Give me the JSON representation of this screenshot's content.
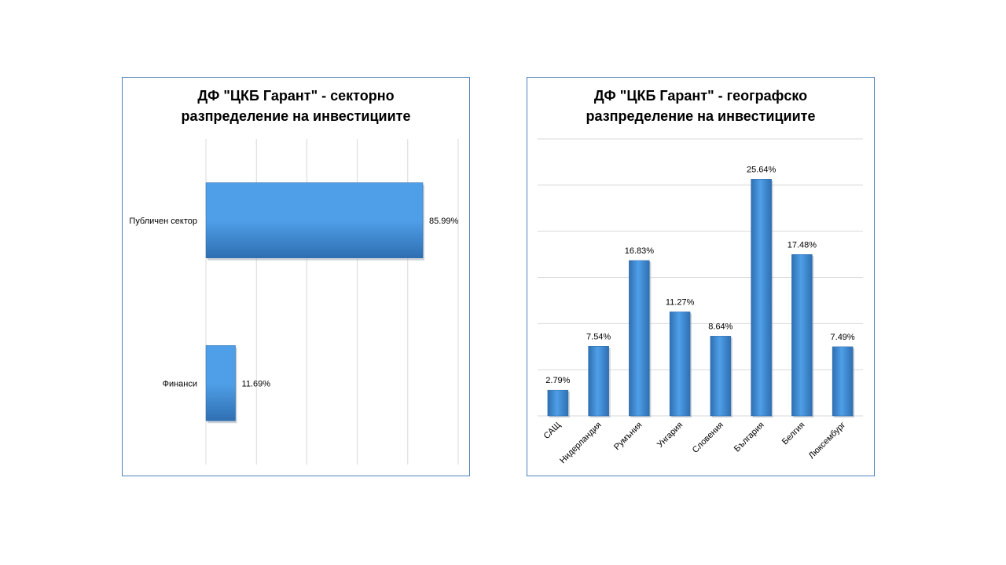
{
  "chart_data": [
    {
      "type": "bar",
      "orientation": "horizontal",
      "title_lines": [
        "ДФ \"ЦКБ Гарант\" - секторно",
        "разпределение на инвестициите"
      ],
      "categories": [
        "Публичен сектор",
        "Финанси"
      ],
      "values": [
        85.99,
        11.69
      ],
      "data_labels": [
        "85.99%",
        "11.69%"
      ],
      "value_unit": "%",
      "xlim": [
        0,
        100
      ],
      "grid": "vertical",
      "legend": "none",
      "colors": {
        "bar": "#4f9fe8",
        "bar_dark": "#2f6fb2",
        "grid": "#d9d9d9",
        "border": "#4f81bd"
      }
    },
    {
      "type": "bar",
      "orientation": "vertical",
      "title_lines": [
        "ДФ \"ЦКБ Гарант\" - географско",
        "разпределение на инвестициите"
      ],
      "categories": [
        "САЩ",
        "Нидерландия",
        "Румъния",
        "Унгария",
        "Словения",
        "България",
        "Белгия",
        "Люксембург"
      ],
      "values": [
        2.79,
        7.54,
        16.83,
        11.27,
        8.64,
        25.64,
        17.48,
        7.49
      ],
      "data_labels": [
        "2.79%",
        "7.54%",
        "16.83%",
        "11.27%",
        "8.64%",
        "25.64%",
        "17.48%",
        "7.49%"
      ],
      "value_unit": "%",
      "ylim": [
        0,
        30
      ],
      "grid": "horizontal",
      "legend": "none",
      "colors": {
        "bar": "#4f9fe8",
        "bar_dark": "#2f6fb2",
        "grid": "#d9d9d9",
        "border": "#4f81bd"
      }
    }
  ]
}
